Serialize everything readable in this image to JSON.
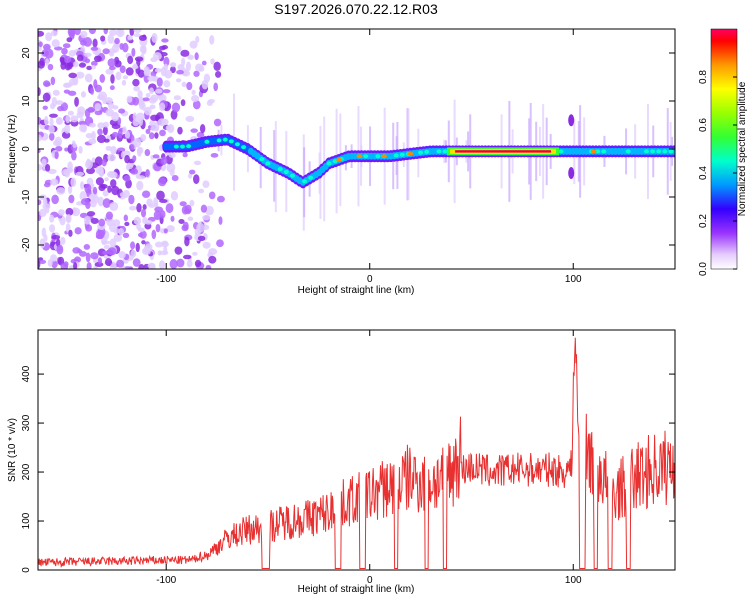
{
  "title": "S197.2026.070.22.12.R03",
  "chart_data": [
    {
      "type": "heatmap",
      "name": "spectrogram",
      "xlabel": "Height of straight line (km)",
      "ylabel": "Frequency (Hz)",
      "xlim": [
        -163,
        150
      ],
      "ylim": [
        -25,
        25
      ],
      "xticks": [
        -100,
        0,
        100
      ],
      "xtick_labels": [
        "-100",
        "0",
        "100"
      ],
      "yticks": [
        -20,
        -10,
        0,
        10,
        20
      ],
      "ytick_labels": [
        "-20",
        "-10",
        "0",
        "10",
        "20"
      ],
      "colorbar": {
        "label": "Normalized spectral amplitude",
        "range": [
          0,
          1
        ],
        "ticks": [
          0.0,
          0.2,
          0.4,
          0.6,
          0.8
        ],
        "tick_labels": [
          "0.0",
          "0.2",
          "0.4",
          "0.6",
          "0.8"
        ]
      },
      "ridge": {
        "description_points": [
          {
            "x": -100,
            "f": 0.5
          },
          {
            "x": -90,
            "f": 0.5
          },
          {
            "x": -80,
            "f": 1.5
          },
          {
            "x": -70,
            "f": 2
          },
          {
            "x": -60,
            "f": 0
          },
          {
            "x": -50,
            "f": -3
          },
          {
            "x": -40,
            "f": -5
          },
          {
            "x": -33,
            "f": -7
          },
          {
            "x": -25,
            "f": -5
          },
          {
            "x": -20,
            "f": -3
          },
          {
            "x": -10,
            "f": -1.5
          },
          {
            "x": 0,
            "f": -1.5
          },
          {
            "x": 10,
            "f": -1.5
          },
          {
            "x": 20,
            "f": -1
          },
          {
            "x": 30,
            "f": -0.5
          },
          {
            "x": 40,
            "f": -0.5
          },
          {
            "x": 60,
            "f": -0.5
          },
          {
            "x": 90,
            "f": -0.5
          },
          {
            "x": 100,
            "f": -0.5
          },
          {
            "x": 120,
            "f": -0.5
          },
          {
            "x": 150,
            "f": -0.5
          }
        ],
        "peak_segment": {
          "x_start": 38,
          "x_end": 93,
          "f": -0.5,
          "amplitude": 1.0
        }
      }
    },
    {
      "type": "line",
      "name": "snr",
      "xlabel": "Height of straight line (km)",
      "ylabel": "SNR (10 * v/v)",
      "xlim": [
        -163,
        150
      ],
      "ylim": [
        0,
        490
      ],
      "xticks": [
        -100,
        0,
        100
      ],
      "xtick_labels": [
        "-100",
        "0",
        "100"
      ],
      "yticks": [
        0,
        100,
        200,
        300,
        400
      ],
      "ytick_labels": [
        "0",
        "100",
        "200",
        "300",
        "400"
      ],
      "color": "#e83030",
      "series": [
        {
          "name": "SNR",
          "x": [
            -163,
            -100,
            -90,
            -80,
            -70,
            -60,
            -50,
            -40,
            -30,
            -20,
            -10,
            0,
            10,
            20,
            30,
            40,
            45,
            50,
            60,
            70,
            80,
            90,
            95,
            99,
            101,
            102,
            103,
            105,
            110,
            120,
            130,
            140,
            150
          ],
          "y": [
            15,
            20,
            20,
            25,
            55,
            70,
            75,
            85,
            90,
            100,
            120,
            130,
            145,
            160,
            150,
            170,
            205,
            210,
            200,
            205,
            205,
            205,
            200,
            210,
            490,
            350,
            250,
            200,
            190,
            130,
            160,
            175,
            180
          ]
        }
      ]
    }
  ]
}
